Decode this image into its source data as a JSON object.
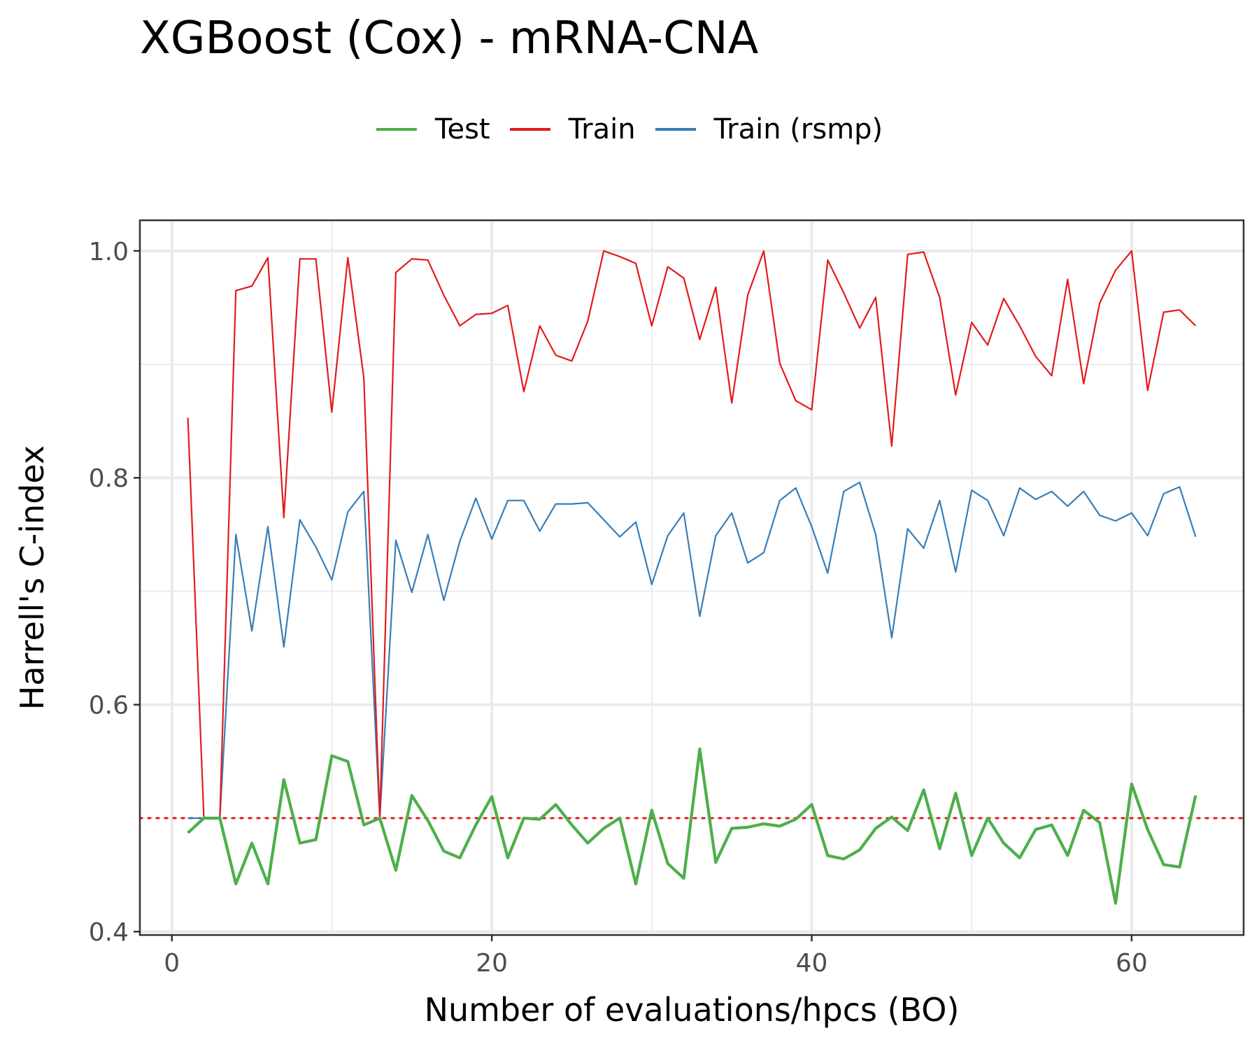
{
  "chart_data": {
    "type": "line",
    "title": "XGBoost (Cox) - mRNA-CNA",
    "xlabel": "Number of evaluations/hpcs (BO)",
    "ylabel": "Harrell's C-index",
    "xlim": [
      -2,
      67
    ],
    "ylim": [
      0.397,
      1.027
    ],
    "x_ticks": [
      "0",
      "20",
      "40",
      "60"
    ],
    "y_ticks": [
      "0.4",
      "0.6",
      "0.8",
      "1.0"
    ],
    "grid": true,
    "legend_position": "top",
    "reference_line": {
      "y": 0.5,
      "style": "dotted",
      "color": "#e41a1c"
    },
    "x": [
      1,
      2,
      3,
      4,
      5,
      6,
      7,
      8,
      9,
      10,
      11,
      12,
      13,
      14,
      15,
      16,
      17,
      18,
      19,
      20,
      21,
      22,
      23,
      24,
      25,
      26,
      27,
      28,
      29,
      30,
      31,
      32,
      33,
      34,
      35,
      36,
      37,
      38,
      39,
      40,
      41,
      42,
      43,
      44,
      45,
      46,
      47,
      48,
      49,
      50,
      51,
      52,
      53,
      54,
      55,
      56,
      57,
      58,
      59,
      60,
      61,
      62,
      63,
      64
    ],
    "series": [
      {
        "name": "Test",
        "color": "#4daf4a",
        "width": 4.2,
        "values": [
          0.487,
          0.5,
          0.5,
          0.442,
          0.478,
          0.442,
          0.534,
          0.478,
          0.481,
          0.555,
          0.55,
          0.494,
          0.5,
          0.454,
          0.52,
          0.498,
          0.471,
          0.465,
          0.494,
          0.519,
          0.465,
          0.5,
          0.499,
          0.512,
          0.494,
          0.478,
          0.491,
          0.5,
          0.442,
          0.507,
          0.46,
          0.447,
          0.561,
          0.461,
          0.491,
          0.492,
          0.495,
          0.493,
          0.499,
          0.512,
          0.467,
          0.464,
          0.472,
          0.491,
          0.501,
          0.489,
          0.525,
          0.473,
          0.522,
          0.467,
          0.5,
          0.478,
          0.465,
          0.49,
          0.494,
          0.467,
          0.507,
          0.496,
          0.425,
          0.53,
          0.49,
          0.459,
          0.457,
          0.52
        ]
      },
      {
        "name": "Train",
        "color": "#e41a1c",
        "width": 2.2,
        "values": [
          0.853,
          0.5,
          0.5,
          0.965,
          0.969,
          0.994,
          0.765,
          0.993,
          0.993,
          0.858,
          0.994,
          0.888,
          0.5,
          0.981,
          0.993,
          0.992,
          0.961,
          0.934,
          0.944,
          0.945,
          0.952,
          0.876,
          0.934,
          0.908,
          0.903,
          0.938,
          1.0,
          0.995,
          0.989,
          0.934,
          0.986,
          0.976,
          0.922,
          0.968,
          0.866,
          0.961,
          1.0,
          0.901,
          0.868,
          0.86,
          0.992,
          0.963,
          0.932,
          0.959,
          0.828,
          0.997,
          0.999,
          0.959,
          0.873,
          0.937,
          0.917,
          0.958,
          0.934,
          0.907,
          0.89,
          0.975,
          0.883,
          0.954,
          0.983,
          1.0,
          0.877,
          0.946,
          0.948,
          0.934
        ]
      },
      {
        "name": "Train (rsmp)",
        "color": "#377eb8",
        "width": 2.2,
        "values": [
          0.5,
          0.5,
          0.5,
          0.75,
          0.665,
          0.757,
          0.651,
          0.763,
          0.739,
          0.71,
          0.77,
          0.788,
          0.5,
          0.745,
          0.699,
          0.75,
          0.692,
          0.744,
          0.782,
          0.746,
          0.78,
          0.78,
          0.753,
          0.777,
          0.777,
          0.778,
          0.763,
          0.748,
          0.761,
          0.706,
          0.749,
          0.769,
          0.678,
          0.749,
          0.769,
          0.725,
          0.734,
          0.78,
          0.791,
          0.757,
          0.716,
          0.788,
          0.796,
          0.75,
          0.659,
          0.755,
          0.738,
          0.78,
          0.717,
          0.789,
          0.78,
          0.749,
          0.791,
          0.781,
          0.788,
          0.775,
          0.788,
          0.767,
          0.762,
          0.769,
          0.749,
          0.786,
          0.792,
          0.748
        ]
      }
    ]
  }
}
